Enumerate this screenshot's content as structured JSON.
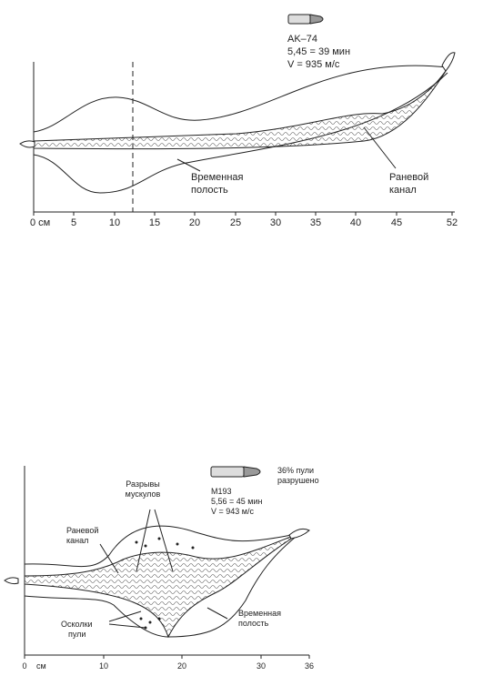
{
  "diagram1": {
    "bullet": [
      "AK–74",
      "5,45 = 39 мин",
      "V = 935 м/с"
    ],
    "cavity_label": [
      "Временная",
      "полость"
    ],
    "channel_label": [
      "Раневой",
      "канал"
    ],
    "axis_ticks": [
      "0 см",
      "5",
      "10",
      "15",
      "20",
      "25",
      "30",
      "35",
      "40",
      "45",
      "52"
    ]
  },
  "diagram2": {
    "fragmented_note": [
      "36% пули",
      "разрушено"
    ],
    "bullet": [
      "M193",
      "5,56 = 45 мин",
      "V = 943 м/с"
    ],
    "muscle_label": [
      "Разрывы",
      "мускулов"
    ],
    "channel_label": [
      "Раневой",
      "канал"
    ],
    "fragments_label": [
      "Осколки",
      "пули"
    ],
    "cavity_label": [
      "Временная",
      "полость"
    ],
    "axis_ticks": [
      "0",
      "см",
      "10",
      "20",
      "30",
      "36"
    ]
  }
}
